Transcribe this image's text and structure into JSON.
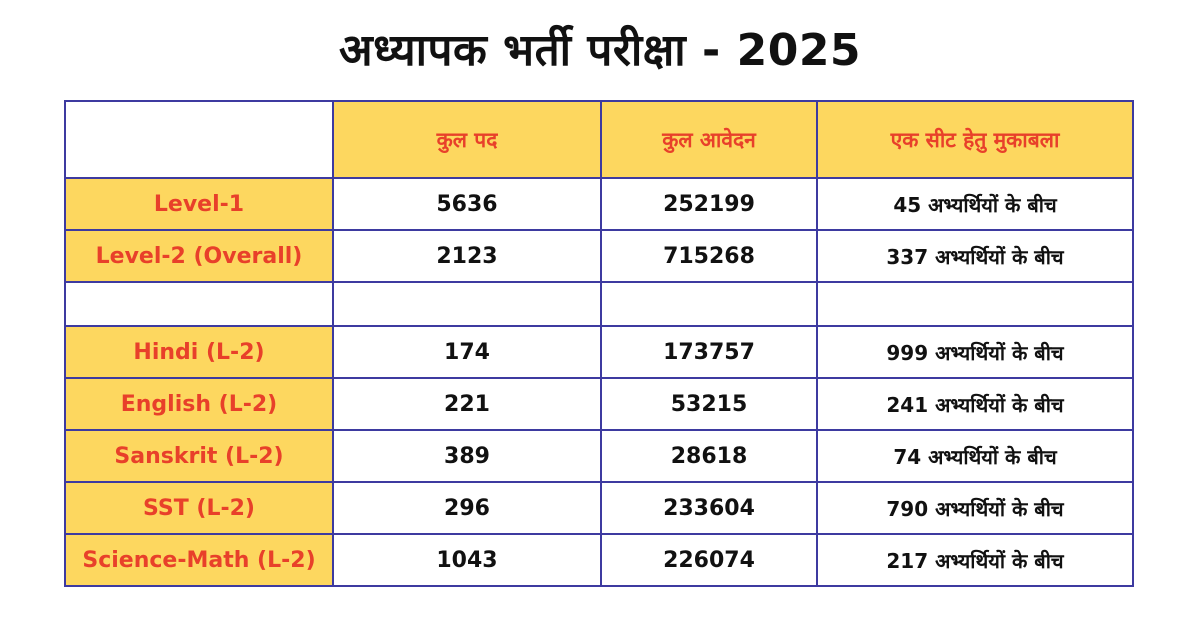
{
  "title": "अध्यापक भर्ती परीक्षा - 2025",
  "table": {
    "headers": [
      "कुल पद",
      "कुल आवेदन",
      "एक सीट हेतु मुकाबला"
    ],
    "rows": [
      {
        "label": "Level-1",
        "posts": "5636",
        "applications": "252199",
        "competition": "45 अभ्यर्थियों के बीच"
      },
      {
        "label": "Level-2 (Overall)",
        "posts": "2123",
        "applications": "715268",
        "competition": "337 अभ्यर्थियों के बीच"
      },
      {
        "label": "Hindi (L-2)",
        "posts": "174",
        "applications": "173757",
        "competition": "999 अभ्यर्थियों के बीच"
      },
      {
        "label": "English (L-2)",
        "posts": "221",
        "applications": "53215",
        "competition": "241 अभ्यर्थियों के बीच"
      },
      {
        "label": "Sanskrit (L-2)",
        "posts": "389",
        "applications": "28618",
        "competition": "74 अभ्यर्थियों के बीच"
      },
      {
        "label": "SST (L-2)",
        "posts": "296",
        "applications": "233604",
        "competition": "790 अभ्यर्थियों के बीच"
      },
      {
        "label": "Science-Math (L-2)",
        "posts": "1043",
        "applications": "226074",
        "competition": "217 अभ्यर्थियों के बीच"
      }
    ]
  },
  "colors": {
    "header_fill": "#fdd75f",
    "label_text": "#e8402a",
    "border": "#3d3aa0"
  }
}
